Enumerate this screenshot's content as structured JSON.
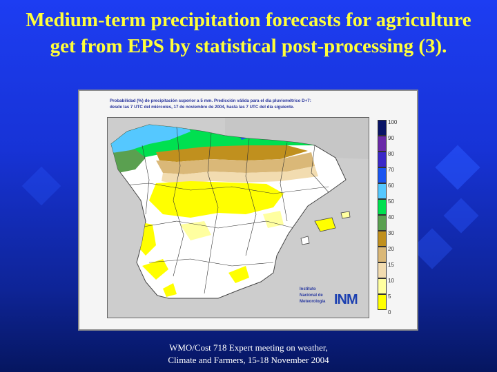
{
  "slide": {
    "title": "Medium-term precipitation forecasts for agriculture get from EPS by statistical post-processing (3).",
    "footer": "WMO/Cost 718 Expert meeting on weather, Climate and Farmers, 15-18 November 2004"
  },
  "map": {
    "header_line1": "Probabilidad (%) de precipitación superior a 5 mm. Predicción válida para el día pluviométrico D+7:",
    "header_line2": "desde las 7 UTC del miércoles, 17 de noviembre de 2004, hasta las 7 UTC del día siguiente.",
    "logo_text": "Instituto Nacional de Meteorología",
    "logo_mark": "INM",
    "legend": [
      {
        "label": "100",
        "color": "#0a1466"
      },
      {
        "label": "90",
        "color": "#6a2aa8"
      },
      {
        "label": "80",
        "color": "#3b28c8"
      },
      {
        "label": "70",
        "color": "#1a55f0"
      },
      {
        "label": "60",
        "color": "#55c8ff"
      },
      {
        "label": "50",
        "color": "#00e050"
      },
      {
        "label": "40",
        "color": "#5aa050"
      },
      {
        "label": "30",
        "color": "#c0901e"
      },
      {
        "label": "20",
        "color": "#dab878"
      },
      {
        "label": "15",
        "color": "#f2dcb0"
      },
      {
        "label": "10",
        "color": "#ffffa0"
      },
      {
        "label": "5",
        "color": "#ffff00"
      },
      {
        "label": "0",
        "color": "#ffffff"
      }
    ]
  }
}
